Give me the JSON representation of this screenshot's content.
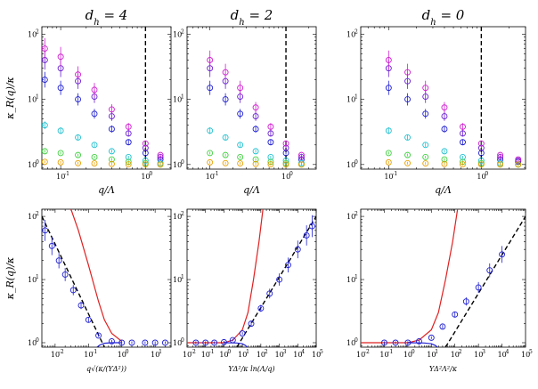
{
  "figure": {
    "y_label": "κ_R(q)/κ",
    "y_ticks": [
      "10^0",
      "10^1",
      "10^2"
    ]
  },
  "chart_data": [
    {
      "type": "scatter",
      "panel": "top-left",
      "title": "d_h = 4",
      "xlabel": "q/Λ",
      "ylabel": "κ_R(q)/κ",
      "xscale": "log",
      "yscale": "log",
      "xlim": [
        0.06,
        2.0
      ],
      "ylim": [
        0.85,
        130
      ],
      "x_ticks": [
        0.1,
        1
      ],
      "x_tick_labels": [
        "10^-1",
        "10^0"
      ],
      "y_ticks": [
        1,
        10,
        100
      ],
      "vline": {
        "x": 1.0,
        "style": "dashed"
      },
      "series": [
        {
          "name": "blue",
          "color": "#1f1fd0",
          "x": [
            0.065,
            0.1,
            0.16,
            0.25,
            0.4,
            0.63,
            1.0,
            1.5
          ],
          "y": [
            20,
            15,
            10,
            6,
            3.5,
            2.2,
            1.5,
            1.2
          ]
        },
        {
          "name": "purple",
          "color": "#6a1fd0",
          "x": [
            0.065,
            0.1,
            0.16,
            0.25,
            0.4,
            0.63,
            1.0,
            1.5
          ],
          "y": [
            40,
            30,
            19,
            11,
            5.5,
            3.0,
            1.8,
            1.3
          ]
        },
        {
          "name": "magenta",
          "color": "#d01fd0",
          "x": [
            0.065,
            0.1,
            0.16,
            0.25,
            0.4,
            0.63,
            1.0,
            1.5
          ],
          "y": [
            60,
            45,
            24,
            14,
            7.0,
            3.8,
            2.1,
            1.4
          ]
        },
        {
          "name": "cyan",
          "color": "#1fc0d0",
          "x": [
            0.065,
            0.1,
            0.16,
            0.25,
            0.4,
            0.63,
            1.0,
            1.5
          ],
          "y": [
            4,
            3.3,
            2.6,
            2.0,
            1.6,
            1.3,
            1.15,
            1.05
          ]
        },
        {
          "name": "green",
          "color": "#40d040",
          "x": [
            0.065,
            0.1,
            0.16,
            0.25,
            0.4,
            0.63,
            1.0,
            1.5
          ],
          "y": [
            1.6,
            1.5,
            1.4,
            1.3,
            1.2,
            1.1,
            1.05,
            1.0
          ]
        },
        {
          "name": "orange",
          "color": "#e8a000",
          "x": [
            0.065,
            0.1,
            0.16,
            0.25,
            0.4,
            0.63,
            1.0,
            1.5
          ],
          "y": [
            1.1,
            1.08,
            1.05,
            1.04,
            1.02,
            1.01,
            1.0,
            1.0
          ]
        }
      ]
    },
    {
      "type": "scatter",
      "panel": "top-middle",
      "title": "d_h = 2",
      "xlabel": "q/Λ",
      "ylabel": "",
      "xscale": "log",
      "yscale": "log",
      "xlim": [
        0.05,
        2.5
      ],
      "ylim": [
        0.85,
        130
      ],
      "x_ticks": [
        0.1,
        1
      ],
      "x_tick_labels": [
        "10^-1",
        "10^0"
      ],
      "y_ticks": [
        1,
        10,
        100
      ],
      "vline": {
        "x": 1.0,
        "style": "dashed"
      },
      "series": [
        {
          "name": "blue",
          "color": "#1f1fd0",
          "x": [
            0.1,
            0.16,
            0.25,
            0.4,
            0.63,
            1.0,
            1.6
          ],
          "y": [
            15,
            10,
            6,
            3.5,
            2.2,
            1.5,
            1.2
          ]
        },
        {
          "name": "purple",
          "color": "#6a1fd0",
          "x": [
            0.1,
            0.16,
            0.25,
            0.4,
            0.63,
            1.0,
            1.6
          ],
          "y": [
            30,
            19,
            11,
            5.5,
            3.0,
            1.8,
            1.3
          ]
        },
        {
          "name": "magenta",
          "color": "#d01fd0",
          "x": [
            0.1,
            0.16,
            0.25,
            0.4,
            0.63,
            1.0,
            1.6
          ],
          "y": [
            40,
            26,
            15,
            7.5,
            3.8,
            2.1,
            1.4
          ]
        },
        {
          "name": "cyan",
          "color": "#1fc0d0",
          "x": [
            0.1,
            0.16,
            0.25,
            0.4,
            0.63,
            1.0,
            1.6
          ],
          "y": [
            3.3,
            2.6,
            2.0,
            1.6,
            1.3,
            1.15,
            1.05
          ]
        },
        {
          "name": "green",
          "color": "#40d040",
          "x": [
            0.1,
            0.16,
            0.25,
            0.4,
            0.63,
            1.0,
            1.6
          ],
          "y": [
            1.5,
            1.4,
            1.3,
            1.2,
            1.1,
            1.05,
            1.0
          ]
        },
        {
          "name": "orange",
          "color": "#e8a000",
          "x": [
            0.1,
            0.16,
            0.25,
            0.4,
            0.63,
            1.0,
            1.6
          ],
          "y": [
            1.08,
            1.05,
            1.04,
            1.02,
            1.01,
            1.0,
            1.0
          ]
        }
      ]
    },
    {
      "type": "scatter",
      "panel": "top-right",
      "title": "d_h = 0",
      "xlabel": "q/Λ",
      "ylabel": "",
      "xscale": "log",
      "yscale": "log",
      "xlim": [
        0.05,
        3.0
      ],
      "ylim": [
        0.85,
        130
      ],
      "x_ticks": [
        0.1,
        1
      ],
      "x_tick_labels": [
        "10^-1",
        "10^0"
      ],
      "y_ticks": [
        1,
        10,
        100
      ],
      "vline": {
        "x": 1.0,
        "style": "dashed"
      },
      "series": [
        {
          "name": "blue",
          "color": "#1f1fd0",
          "x": [
            0.1,
            0.16,
            0.25,
            0.4,
            0.63,
            1.0,
            1.6,
            2.5
          ],
          "y": [
            15,
            10,
            6,
            3.5,
            2.2,
            1.5,
            1.2,
            1.1
          ]
        },
        {
          "name": "purple",
          "color": "#6a1fd0",
          "x": [
            0.1,
            0.16,
            0.25,
            0.4,
            0.63,
            1.0,
            1.6,
            2.5
          ],
          "y": [
            30,
            19,
            11,
            5.5,
            3.0,
            1.8,
            1.3,
            1.15
          ]
        },
        {
          "name": "magenta",
          "color": "#d01fd0",
          "x": [
            0.1,
            0.16,
            0.25,
            0.4,
            0.63,
            1.0,
            1.6,
            2.5
          ],
          "y": [
            40,
            26,
            15,
            7.5,
            3.8,
            2.1,
            1.4,
            1.2
          ]
        },
        {
          "name": "cyan",
          "color": "#1fc0d0",
          "x": [
            0.1,
            0.16,
            0.25,
            0.4,
            0.63,
            1.0,
            1.6,
            2.5
          ],
          "y": [
            3.3,
            2.6,
            2.0,
            1.6,
            1.3,
            1.15,
            1.05,
            1.0
          ]
        },
        {
          "name": "green",
          "color": "#40d040",
          "x": [
            0.1,
            0.16,
            0.25,
            0.4,
            0.63,
            1.0,
            1.6,
            2.5
          ],
          "y": [
            1.5,
            1.4,
            1.3,
            1.2,
            1.1,
            1.05,
            1.0,
            1.0
          ]
        },
        {
          "name": "orange",
          "color": "#e8a000",
          "x": [
            0.1,
            0.16,
            0.25,
            0.4,
            0.63,
            1.0,
            1.6,
            2.5
          ],
          "y": [
            1.08,
            1.05,
            1.04,
            1.02,
            1.01,
            1.0,
            1.0,
            1.0
          ]
        }
      ]
    },
    {
      "type": "scatter",
      "panel": "bottom-left",
      "title": "",
      "xlabel": "q√(κ/(YΔ²))",
      "ylabel": "κ_R(q)/κ",
      "xscale": "log",
      "yscale": "log",
      "xlim": [
        0.004,
        30
      ],
      "ylim": [
        0.85,
        130
      ],
      "x_ticks": [
        0.01,
        0.1,
        1,
        10
      ],
      "x_tick_labels": [
        "10^-2",
        "10^-1",
        "10^0",
        "10^1"
      ],
      "y_ticks": [
        1,
        10,
        100
      ],
      "series": [
        {
          "name": "scaled data",
          "color": "#1f1fd0",
          "x": [
            0.005,
            0.008,
            0.013,
            0.02,
            0.035,
            0.06,
            0.1,
            0.2,
            0.5,
            1,
            2,
            5,
            10,
            20
          ],
          "y": [
            60,
            34,
            20,
            12,
            6.8,
            3.9,
            2.3,
            1.3,
            1.05,
            1.0,
            1.0,
            1.0,
            1.0,
            1.0
          ]
        }
      ],
      "curves": [
        {
          "name": "red curve",
          "color": "#e02020",
          "x": [
            0.03,
            0.05,
            0.1,
            0.2,
            0.3,
            0.5,
            1.0
          ],
          "y": [
            130,
            60,
            17,
            4.5,
            2.3,
            1.4,
            1.05
          ]
        },
        {
          "name": "dashed asymptote",
          "color": "#000000",
          "x": [
            0.004,
            0.3
          ],
          "y": [
            100,
            0.85
          ]
        },
        {
          "name": "blue curve",
          "color": "#1f1fd0",
          "x": [
            0.18,
            0.22,
            0.3,
            0.5,
            1.0
          ],
          "y": [
            0.85,
            0.92,
            0.98,
            1.0,
            1.0
          ]
        }
      ]
    },
    {
      "type": "scatter",
      "panel": "bottom-middle",
      "title": "",
      "xlabel": "YΔ²/κ ln(Λ/q)",
      "ylabel": "",
      "xscale": "log",
      "yscale": "log",
      "xlim": [
        0.01,
        100000
      ],
      "ylim": [
        0.85,
        130
      ],
      "x_ticks": [
        0.01,
        0.1,
        1,
        10,
        100,
        1000,
        10000,
        100000
      ],
      "x_tick_labels": [
        "10^-2",
        "10^-1",
        "10^0",
        "10^1",
        "10^2",
        "10^3",
        "10^4",
        "10^5"
      ],
      "y_ticks": [
        1,
        10,
        100
      ],
      "series": [
        {
          "name": "scaled data",
          "color": "#1f1fd0",
          "x": [
            0.03,
            0.1,
            0.3,
            1,
            3,
            10,
            30,
            100,
            300,
            1000,
            3000,
            10000,
            30000,
            60000
          ],
          "y": [
            1.0,
            1.0,
            1.0,
            1.02,
            1.1,
            1.4,
            2.0,
            3.5,
            6,
            10,
            17,
            30,
            50,
            70
          ]
        }
      ],
      "curves": [
        {
          "name": "red curve",
          "color": "#e02020",
          "x": [
            0.01,
            1,
            3,
            10,
            20,
            40,
            80,
            130
          ],
          "y": [
            1.0,
            1.0,
            1.1,
            1.6,
            3.0,
            10,
            40,
            130
          ]
        },
        {
          "name": "dashed asymptote",
          "color": "#000000",
          "x": [
            5,
            100000
          ],
          "y": [
            0.85,
            100
          ]
        },
        {
          "name": "blue curve",
          "color": "#1f1fd0",
          "x": [
            1,
            5,
            10,
            15,
            18
          ],
          "y": [
            1.0,
            0.99,
            0.96,
            0.9,
            0.85
          ]
        }
      ]
    },
    {
      "type": "scatter",
      "panel": "bottom-right",
      "title": "",
      "xlabel": "YΔ²Λ²/κ",
      "ylabel": "",
      "xscale": "log",
      "yscale": "log",
      "xlim": [
        0.01,
        100000
      ],
      "ylim": [
        0.85,
        130
      ],
      "x_ticks": [
        0.01,
        0.1,
        1,
        10,
        100,
        1000,
        10000,
        100000
      ],
      "x_tick_labels": [
        "10^-2",
        "10^-1",
        "10^0",
        "10^1",
        "10^2",
        "10^3",
        "10^4",
        "10^5"
      ],
      "y_ticks": [
        1,
        10,
        100
      ],
      "series": [
        {
          "name": "scaled data",
          "color": "#1f1fd0",
          "x": [
            0.1,
            0.3,
            1,
            3,
            10,
            30,
            100,
            300,
            1000,
            3000,
            10000
          ],
          "y": [
            1.0,
            1.0,
            1.0,
            1.05,
            1.2,
            1.8,
            2.8,
            4.5,
            7.5,
            14,
            25
          ]
        }
      ],
      "curves": [
        {
          "name": "red curve",
          "color": "#e02020",
          "x": [
            0.01,
            1,
            3,
            10,
            20,
            40,
            80,
            130
          ],
          "y": [
            1.0,
            1.0,
            1.1,
            1.6,
            3.0,
            10,
            40,
            130
          ]
        },
        {
          "name": "dashed asymptote",
          "color": "#000000",
          "x": [
            40,
            100000
          ],
          "y": [
            0.85,
            100
          ]
        },
        {
          "name": "blue curve",
          "color": "#1f1fd0",
          "x": [
            1,
            5,
            10,
            15,
            18
          ],
          "y": [
            1.0,
            0.99,
            0.96,
            0.9,
            0.85
          ]
        }
      ]
    }
  ]
}
